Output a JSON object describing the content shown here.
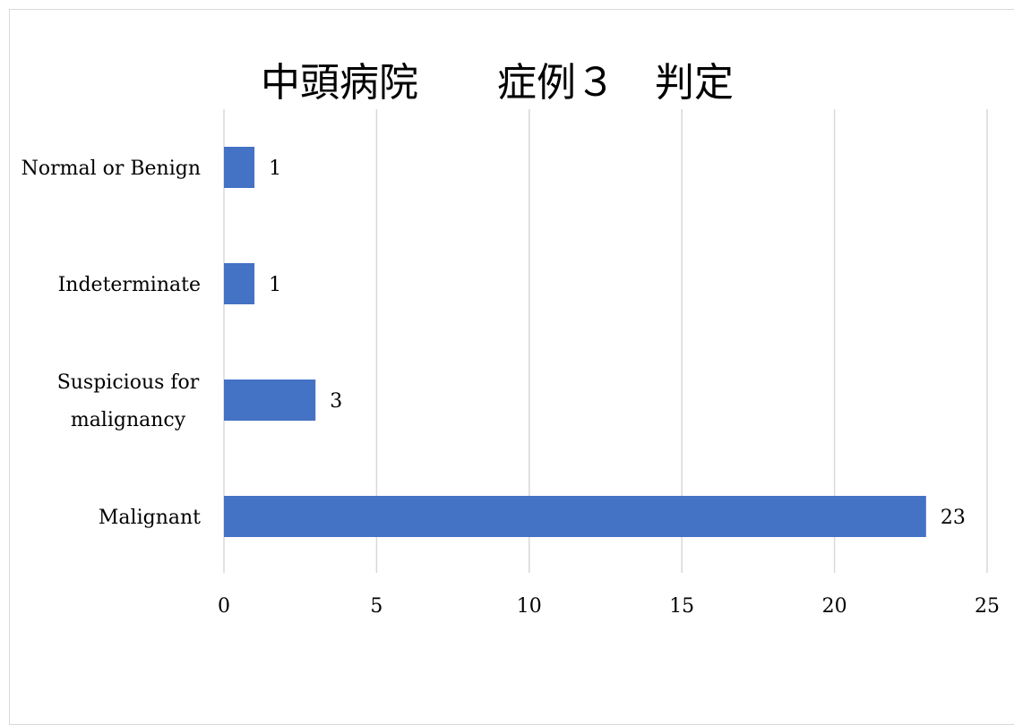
{
  "chart_data": {
    "type": "bar",
    "orientation": "horizontal",
    "title": "中頭病院　　症例３　判定",
    "categories": [
      "Normal or Benign",
      "Indeterminate",
      "Suspicious for malignancy",
      "Malignant"
    ],
    "category_lines": [
      [
        "Normal or Benign"
      ],
      [
        "Indeterminate"
      ],
      [
        "Suspicious for",
        "malignancy"
      ],
      [
        "Malignant"
      ]
    ],
    "values": [
      1,
      1,
      3,
      23
    ],
    "data_labels": [
      "1",
      "1",
      "3",
      "23"
    ],
    "xlim": [
      0,
      25
    ],
    "x_ticks": [
      0,
      5,
      10,
      15,
      20,
      25
    ],
    "x_tick_labels": [
      "0",
      "5",
      "10",
      "15",
      "20",
      "25"
    ],
    "gridlines": "vertical",
    "legend": "none",
    "xlabel": "",
    "ylabel": "",
    "colors": {
      "bar": "#4472c4",
      "grid": "#d9d9d9",
      "frame": "#d9d9d9"
    }
  }
}
